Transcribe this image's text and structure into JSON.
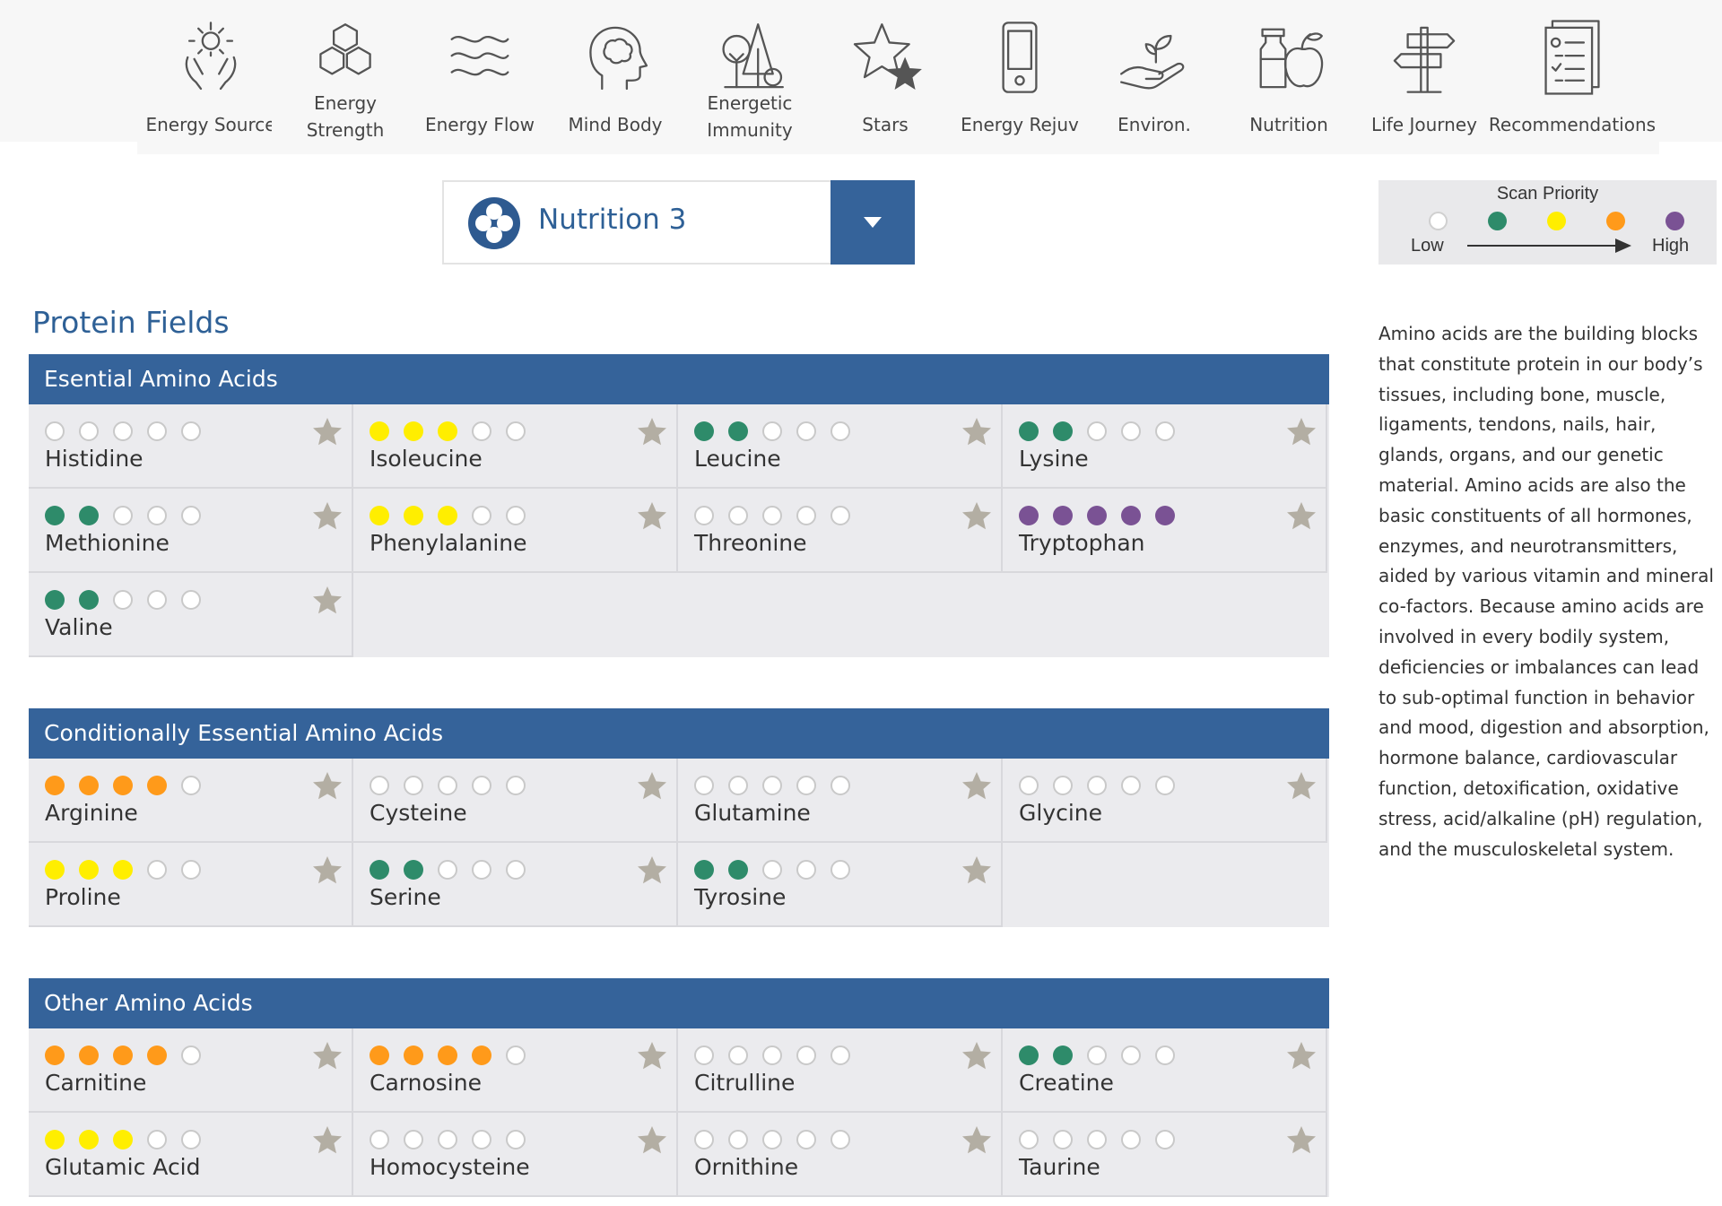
{
  "nav": [
    {
      "label": "Energy Source",
      "icon": "energy-source-icon",
      "lines": 1
    },
    {
      "label": "Energy Strength",
      "icon": "energy-strength-icon",
      "lines": 2
    },
    {
      "label": "Energy Flow",
      "icon": "energy-flow-icon",
      "lines": 1
    },
    {
      "label": "Mind Body",
      "icon": "mind-body-icon",
      "lines": 1
    },
    {
      "label": "Energetic Immunity",
      "icon": "energetic-immunity-icon",
      "lines": 2
    },
    {
      "label": "Stars",
      "icon": "stars-icon",
      "lines": 1
    },
    {
      "label": "Energy Rejuv",
      "icon": "energy-rejuv-icon",
      "lines": 1
    },
    {
      "label": "Environ.",
      "icon": "environ-icon",
      "lines": 1
    },
    {
      "label": "Nutrition",
      "icon": "nutrition-icon",
      "lines": 1
    },
    {
      "label": "Life Journey",
      "icon": "life-journey-icon",
      "lines": 1
    },
    {
      "label": "Recommendations",
      "icon": "recommendations-icon",
      "lines": 1
    }
  ],
  "dropdown": {
    "value": "Nutrition 3"
  },
  "legend": {
    "title": "Scan Priority",
    "low": "Low",
    "high": "High",
    "colors": [
      "#ffffff",
      "#2e8b6a",
      "#ffee00",
      "#ff9a1a",
      "#7a5294"
    ]
  },
  "page_title": "Protein Fields",
  "description": "Amino acids are the building blocks that constitute protein in our body’s tissues, including bone, muscle, ligaments, tendons, nails, hair, glands, organs, and our genetic material. Amino acids are also the basic constituents of all hormones, enzymes, and neurotransmitters, aided by various vitamin and mineral co-factors. Because amino acids are involved in every bodily system, deficiencies or imbalances can lead to sub-optimal function in behavior and mood, digestion and absorption, hormone balance, cardiovascular function, detoxification, oxidative stress, acid/alkaline (pH) regulation, and the musculoskeletal system.",
  "colors": {
    "green": "#2e8b6a",
    "yellow": "#ffee00",
    "orange": "#ff9a1a",
    "purple": "#7a5294",
    "star": "#b3aea3"
  },
  "sections": [
    {
      "title": "Esential Amino Acids",
      "items": [
        {
          "name": "Histidine",
          "level": 0,
          "color": "none"
        },
        {
          "name": "Isoleucine",
          "level": 3,
          "color": "yellow"
        },
        {
          "name": "Leucine",
          "level": 2,
          "color": "green"
        },
        {
          "name": "Lysine",
          "level": 2,
          "color": "green"
        },
        {
          "name": "Methionine",
          "level": 2,
          "color": "green"
        },
        {
          "name": "Phenylalanine",
          "level": 3,
          "color": "yellow"
        },
        {
          "name": "Threonine",
          "level": 0,
          "color": "none"
        },
        {
          "name": "Tryptophan",
          "level": 5,
          "color": "purple"
        },
        {
          "name": "Valine",
          "level": 2,
          "color": "green"
        }
      ]
    },
    {
      "title": "Conditionally Essential Amino Acids",
      "items": [
        {
          "name": "Arginine",
          "level": 4,
          "color": "orange"
        },
        {
          "name": "Cysteine",
          "level": 0,
          "color": "none"
        },
        {
          "name": "Glutamine",
          "level": 0,
          "color": "none"
        },
        {
          "name": "Glycine",
          "level": 0,
          "color": "none"
        },
        {
          "name": "Proline",
          "level": 3,
          "color": "yellow"
        },
        {
          "name": "Serine",
          "level": 2,
          "color": "green"
        },
        {
          "name": "Tyrosine",
          "level": 2,
          "color": "green"
        }
      ]
    },
    {
      "title": "Other Amino Acids",
      "items": [
        {
          "name": "Carnitine",
          "level": 4,
          "color": "orange"
        },
        {
          "name": "Carnosine",
          "level": 4,
          "color": "orange"
        },
        {
          "name": "Citrulline",
          "level": 0,
          "color": "none"
        },
        {
          "name": "Creatine",
          "level": 2,
          "color": "green"
        },
        {
          "name": "Glutamic Acid",
          "level": 3,
          "color": "yellow"
        },
        {
          "name": "Homocysteine",
          "level": 0,
          "color": "none"
        },
        {
          "name": "Ornithine",
          "level": 0,
          "color": "none"
        },
        {
          "name": "Taurine",
          "level": 0,
          "color": "none"
        }
      ]
    }
  ]
}
